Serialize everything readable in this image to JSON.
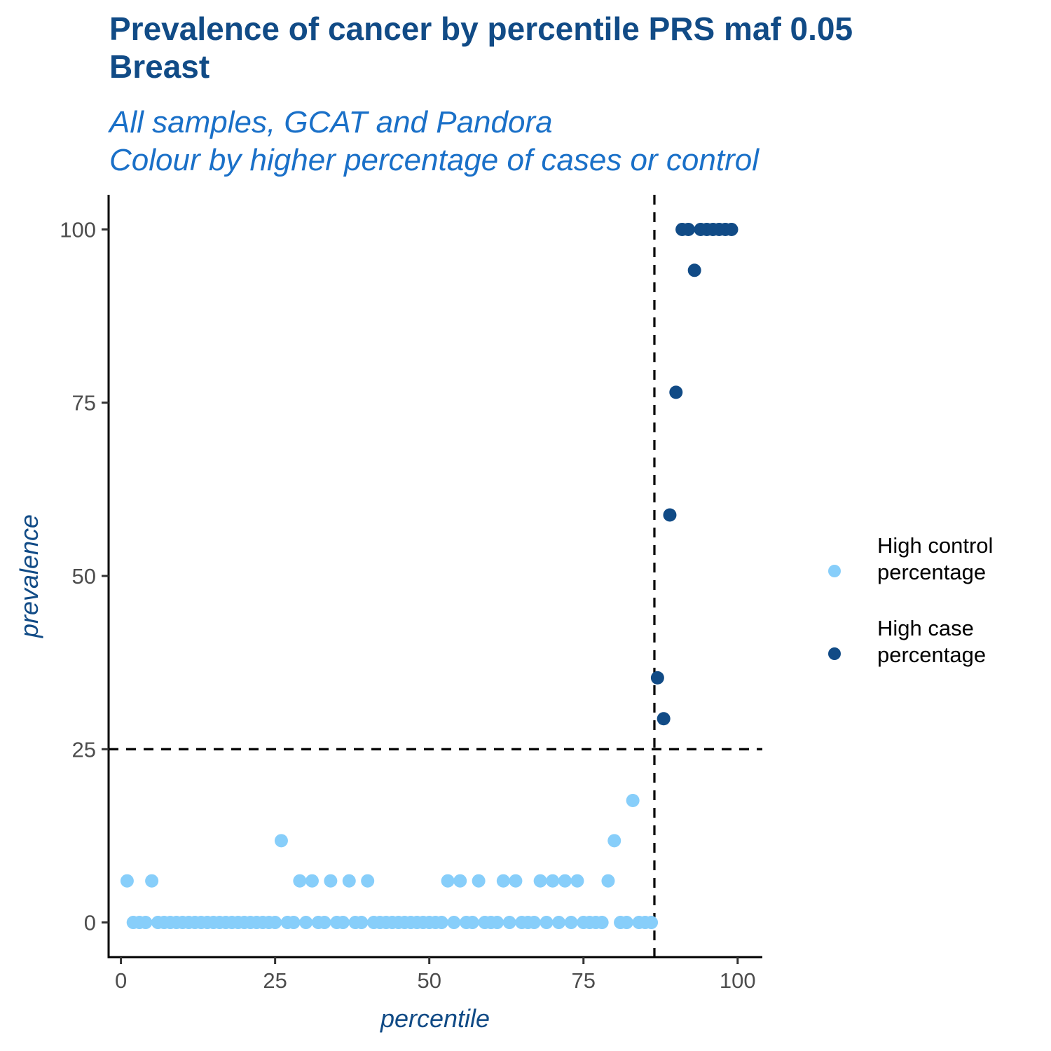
{
  "chart_data": {
    "type": "scatter",
    "title": [
      "Prevalence of cancer by percentile PRS maf 0.05",
      "Breast"
    ],
    "subtitle": [
      "All samples, GCAT and Pandora",
      "Colour by higher percentage of cases or control"
    ],
    "xlabel": "percentile",
    "ylabel": "prevalence",
    "xlim": [
      -2,
      104
    ],
    "ylim": [
      -5,
      105
    ],
    "x_ticks": [
      0,
      25,
      50,
      75,
      100
    ],
    "y_ticks": [
      0,
      25,
      50,
      75,
      100
    ],
    "grid": false,
    "legend_position": "right",
    "reference_lines": [
      {
        "orientation": "vertical",
        "value": 86.5,
        "style": "dashed"
      },
      {
        "orientation": "horizontal",
        "value": 25,
        "style": "dashed"
      }
    ],
    "series": [
      {
        "name": "High control percentage",
        "color": "#87cefa",
        "points": [
          [
            1,
            6
          ],
          [
            2,
            0
          ],
          [
            3,
            0
          ],
          [
            4,
            0
          ],
          [
            5,
            6
          ],
          [
            6,
            0
          ],
          [
            7,
            0
          ],
          [
            8,
            0
          ],
          [
            9,
            0
          ],
          [
            10,
            0
          ],
          [
            11,
            0
          ],
          [
            12,
            0
          ],
          [
            13,
            0
          ],
          [
            14,
            0
          ],
          [
            15,
            0
          ],
          [
            16,
            0
          ],
          [
            17,
            0
          ],
          [
            18,
            0
          ],
          [
            19,
            0
          ],
          [
            20,
            0
          ],
          [
            21,
            0
          ],
          [
            22,
            0
          ],
          [
            23,
            0
          ],
          [
            24,
            0
          ],
          [
            25,
            0
          ],
          [
            26,
            11.8
          ],
          [
            27,
            0
          ],
          [
            28,
            0
          ],
          [
            29,
            6
          ],
          [
            30,
            0
          ],
          [
            31,
            6
          ],
          [
            32,
            0
          ],
          [
            33,
            0
          ],
          [
            34,
            6
          ],
          [
            35,
            0
          ],
          [
            36,
            0
          ],
          [
            37,
            6
          ],
          [
            38,
            0
          ],
          [
            39,
            0
          ],
          [
            40,
            6
          ],
          [
            41,
            0
          ],
          [
            42,
            0
          ],
          [
            43,
            0
          ],
          [
            44,
            0
          ],
          [
            45,
            0
          ],
          [
            46,
            0
          ],
          [
            47,
            0
          ],
          [
            48,
            0
          ],
          [
            49,
            0
          ],
          [
            50,
            0
          ],
          [
            51,
            0
          ],
          [
            52,
            0
          ],
          [
            53,
            6
          ],
          [
            54,
            0
          ],
          [
            55,
            6
          ],
          [
            56,
            0
          ],
          [
            57,
            0
          ],
          [
            58,
            6
          ],
          [
            59,
            0
          ],
          [
            60,
            0
          ],
          [
            61,
            0
          ],
          [
            62,
            6
          ],
          [
            63,
            0
          ],
          [
            64,
            6
          ],
          [
            65,
            0
          ],
          [
            66,
            0
          ],
          [
            67,
            0
          ],
          [
            68,
            6
          ],
          [
            69,
            0
          ],
          [
            70,
            6
          ],
          [
            71,
            0
          ],
          [
            72,
            6
          ],
          [
            73,
            0
          ],
          [
            74,
            6
          ],
          [
            75,
            0
          ],
          [
            76,
            0
          ],
          [
            77,
            0
          ],
          [
            78,
            0
          ],
          [
            79,
            6
          ],
          [
            80,
            11.8
          ],
          [
            81,
            0
          ],
          [
            82,
            0
          ],
          [
            83,
            17.6
          ],
          [
            84,
            0
          ],
          [
            85,
            0
          ],
          [
            86,
            0
          ]
        ]
      },
      {
        "name": "High case percentage",
        "color": "#114b86",
        "points": [
          [
            87,
            35.3
          ],
          [
            88,
            29.4
          ],
          [
            89,
            58.8
          ],
          [
            90,
            76.5
          ],
          [
            91,
            100
          ],
          [
            92,
            100
          ],
          [
            93,
            94.1
          ],
          [
            94,
            100
          ],
          [
            95,
            100
          ],
          [
            96,
            100
          ],
          [
            97,
            100
          ],
          [
            98,
            100
          ],
          [
            99,
            100
          ]
        ]
      }
    ]
  },
  "legend": {
    "items": [
      {
        "label": "High control percentage",
        "lines": [
          "High control",
          "percentage"
        ],
        "color": "#87cefa"
      },
      {
        "label": "High case percentage",
        "lines": [
          "High case",
          "percentage"
        ],
        "color": "#114b86"
      }
    ]
  }
}
